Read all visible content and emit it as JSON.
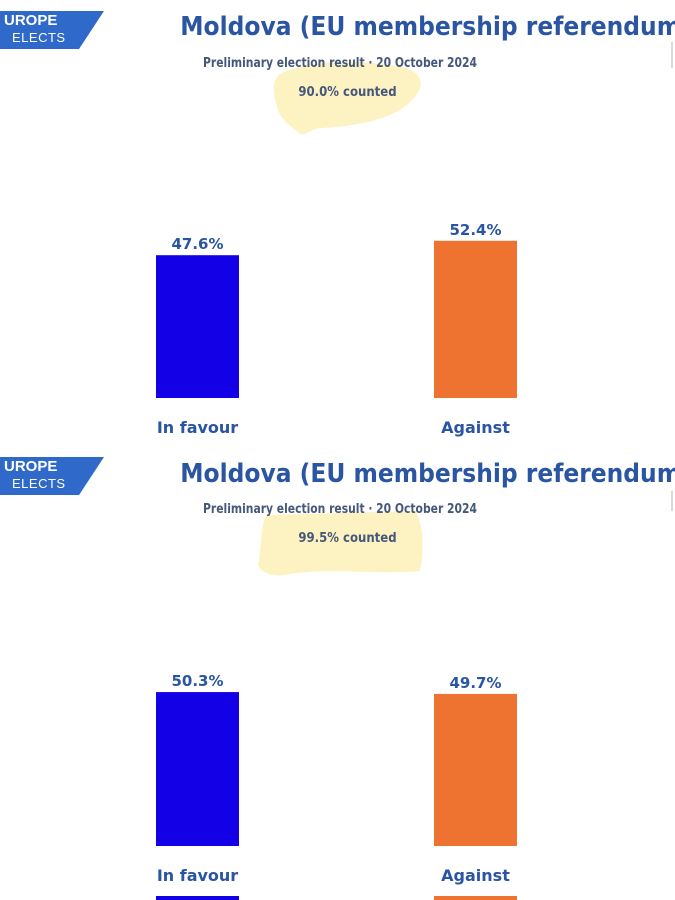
{
  "logo": {
    "line1": "UROPE",
    "line2": "ELECTS"
  },
  "colors": {
    "title": "#2a55a2",
    "subtitle": "#45587a",
    "in_favour": "#1300e6",
    "against": "#ee7230",
    "logo_bg": "#2f69c9",
    "highlight": "#fdf2c2"
  },
  "panels": [
    {
      "title": "Moldova (EU membership referendum)",
      "subtitle": "Preliminary election result · 20 October 2024",
      "counted": "90.0% counted"
    },
    {
      "title": "Moldova (EU membership referendum)",
      "subtitle": "Preliminary election result · 20 October 2024",
      "counted": "99.5% counted"
    }
  ],
  "chart_data": [
    {
      "type": "bar",
      "categories": [
        "In favour",
        "Against"
      ],
      "values": [
        47.6,
        52.4
      ],
      "labels": [
        "47.6%",
        "52.4%"
      ],
      "colors": [
        "#1300e6",
        "#ee7230"
      ],
      "title": "Moldova (EU membership referendum)",
      "subtitle": "Preliminary election result · 20 October 2024",
      "note": "90.0% counted",
      "grid": false
    },
    {
      "type": "bar",
      "categories": [
        "In favour",
        "Against"
      ],
      "values": [
        50.3,
        49.7
      ],
      "labels": [
        "50.3%",
        "49.7%"
      ],
      "colors": [
        "#1300e6",
        "#ee7230"
      ],
      "title": "Moldova (EU membership referendum)",
      "subtitle": "Preliminary election result · 20 October 2024",
      "note": "99.5% counted",
      "grid": false
    }
  ]
}
